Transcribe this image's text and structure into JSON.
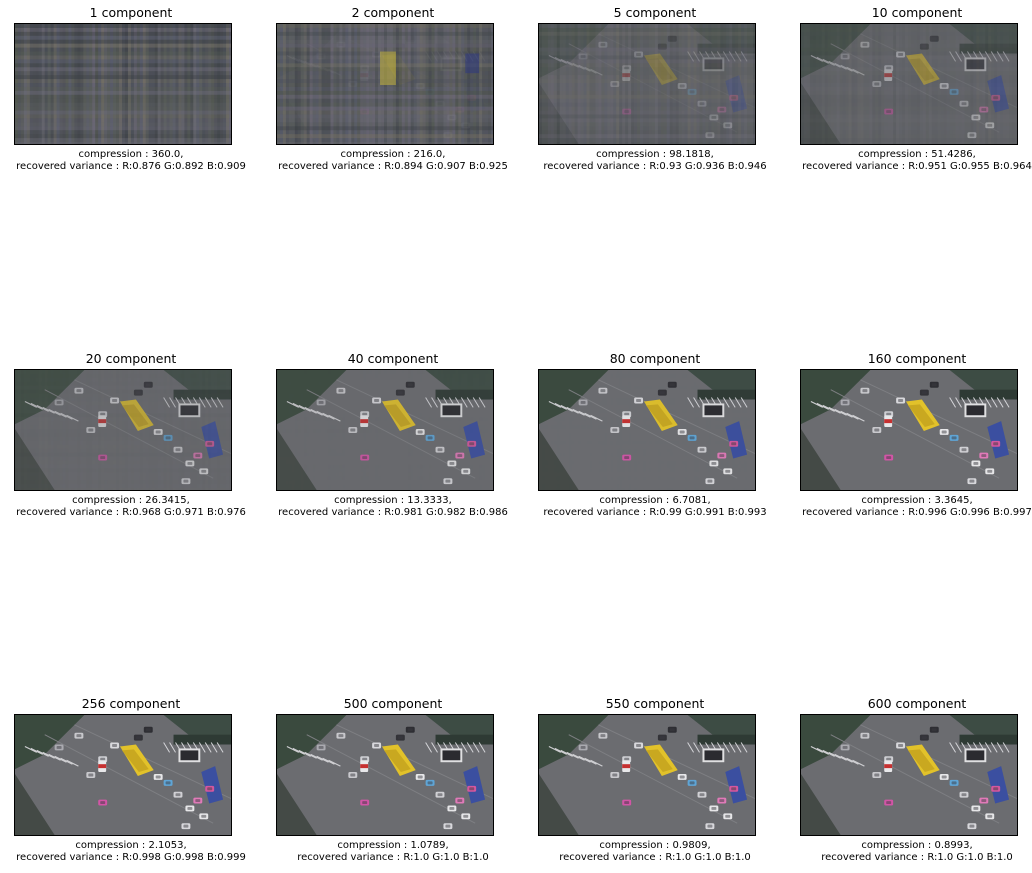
{
  "panels": [
    {
      "title": "1 component",
      "compression": "compression : 360.0,",
      "variance": "recovered variance : R:0.876 G:0.892 B:0.909",
      "clarity": 0.0
    },
    {
      "title": "2 component",
      "compression": "compression : 216.0,",
      "variance": "recovered variance : R:0.894 G:0.907 B:0.925",
      "clarity": 0.06
    },
    {
      "title": "5 component",
      "compression": "compression : 98.1818,",
      "variance": "recovered variance : R:0.93 G:0.936 B:0.946",
      "clarity": 0.3
    },
    {
      "title": "10 component",
      "compression": "compression : 51.4286,",
      "variance": "recovered variance : R:0.951 G:0.955 B:0.964",
      "clarity": 0.5
    },
    {
      "title": "20 component",
      "compression": "compression : 26.3415,",
      "variance": "recovered variance : R:0.968 G:0.971 B:0.976",
      "clarity": 0.7
    },
    {
      "title": "40 component",
      "compression": "compression : 13.3333,",
      "variance": "recovered variance : R:0.981 G:0.982 B:0.986",
      "clarity": 0.85
    },
    {
      "title": "80 component",
      "compression": "compression : 6.7081,",
      "variance": "recovered variance : R:0.99 G:0.991 B:0.993",
      "clarity": 0.95
    },
    {
      "title": "160 component",
      "compression": "compression : 3.3645,",
      "variance": "recovered variance : R:0.996 G:0.996 B:0.997",
      "clarity": 1.0
    },
    {
      "title": "256 component",
      "compression": "compression : 2.1053,",
      "variance": "recovered variance : R:0.998 G:0.998 B:0.999",
      "clarity": 1.0
    },
    {
      "title": "500 component",
      "compression": "compression : 1.0789,",
      "variance": "recovered variance : R:1.0 G:1.0 B:1.0",
      "clarity": 1.0
    },
    {
      "title": "550 component",
      "compression": "compression : 0.9809,",
      "variance": "recovered variance : R:1.0 G:1.0 B:1.0",
      "clarity": 1.0
    },
    {
      "title": "600 component",
      "compression": "compression : 0.8993,",
      "variance": "recovered variance : R:1.0 G:1.0 B:1.0",
      "clarity": 1.0
    }
  ]
}
